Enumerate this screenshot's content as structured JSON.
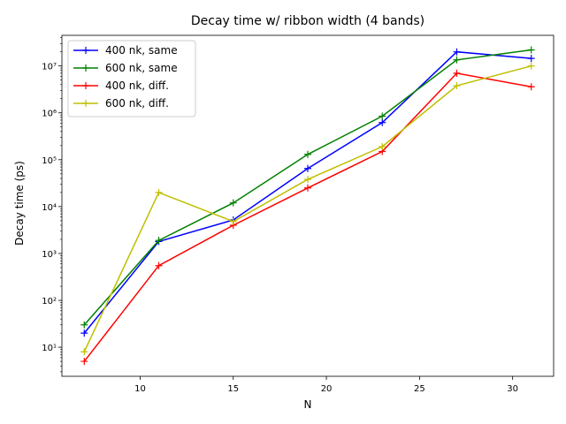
{
  "chart_data": {
    "type": "line",
    "title": "Decay time w/ ribbon width (4 bands)",
    "xlabel": "N",
    "ylabel": "Decay time (ps)",
    "x": [
      7,
      11,
      15,
      19,
      23,
      27,
      31
    ],
    "xlim": [
      5.8,
      32.2
    ],
    "ylim": [
      2.4,
      45000000
    ],
    "yscale": "log",
    "xticks": [
      10,
      15,
      20,
      25,
      30
    ],
    "yticks": [
      {
        "value": 10,
        "label": "10¹"
      },
      {
        "value": 100,
        "label": "10²"
      },
      {
        "value": 1000,
        "label": "10³"
      },
      {
        "value": 10000,
        "label": "10⁴"
      },
      {
        "value": 100000,
        "label": "10⁵"
      },
      {
        "value": 1000000,
        "label": "10⁶"
      },
      {
        "value": 10000000,
        "label": "10⁷"
      }
    ],
    "grid": false,
    "legend_position": "top-left",
    "marker": "+",
    "series": [
      {
        "name": "400 nk, same",
        "color": "#0000ff",
        "values": [
          20,
          1800,
          5200,
          65000,
          620000,
          20000000,
          14500000
        ]
      },
      {
        "name": "600 nk, same",
        "color": "#008000",
        "values": [
          30,
          1900,
          12000,
          130000,
          850000,
          13500000,
          22000000
        ]
      },
      {
        "name": "400 nk, diff.",
        "color": "#ff0000",
        "values": [
          5,
          550,
          4000,
          25000,
          150000,
          7000000,
          3600000
        ]
      },
      {
        "name": "600 nk, diff.",
        "color": "#bfbf00",
        "values": [
          8,
          20000,
          4800,
          38000,
          190000,
          3800000,
          10000000
        ]
      }
    ]
  }
}
